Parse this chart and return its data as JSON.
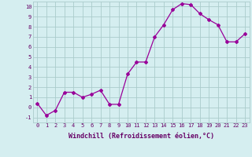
{
  "x": [
    0,
    1,
    2,
    3,
    4,
    5,
    6,
    7,
    8,
    9,
    10,
    11,
    12,
    13,
    14,
    15,
    16,
    17,
    18,
    19,
    20,
    21,
    22,
    23
  ],
  "y": [
    0.4,
    -0.8,
    -0.3,
    1.5,
    1.5,
    1.0,
    1.3,
    1.7,
    0.3,
    0.3,
    3.3,
    4.5,
    4.5,
    7.0,
    8.2,
    9.7,
    10.3,
    10.2,
    9.3,
    8.7,
    8.2,
    6.5,
    6.5,
    7.3
  ],
  "line_color": "#990099",
  "marker": "D",
  "marker_size": 2,
  "bg_color": "#d5eef0",
  "grid_color": "#aacccc",
  "xlabel": "Windchill (Refroidissement éolien,°C)",
  "xlabel_color": "#660066",
  "tick_color": "#660066",
  "xlim": [
    -0.5,
    23.5
  ],
  "ylim": [
    -1.5,
    10.5
  ],
  "yticks": [
    -1,
    0,
    1,
    2,
    3,
    4,
    5,
    6,
    7,
    8,
    9,
    10
  ],
  "xticks": [
    0,
    1,
    2,
    3,
    4,
    5,
    6,
    7,
    8,
    9,
    10,
    11,
    12,
    13,
    14,
    15,
    16,
    17,
    18,
    19,
    20,
    21,
    22,
    23
  ],
  "tick_fontsize": 5.0,
  "xlabel_fontsize": 6.0
}
